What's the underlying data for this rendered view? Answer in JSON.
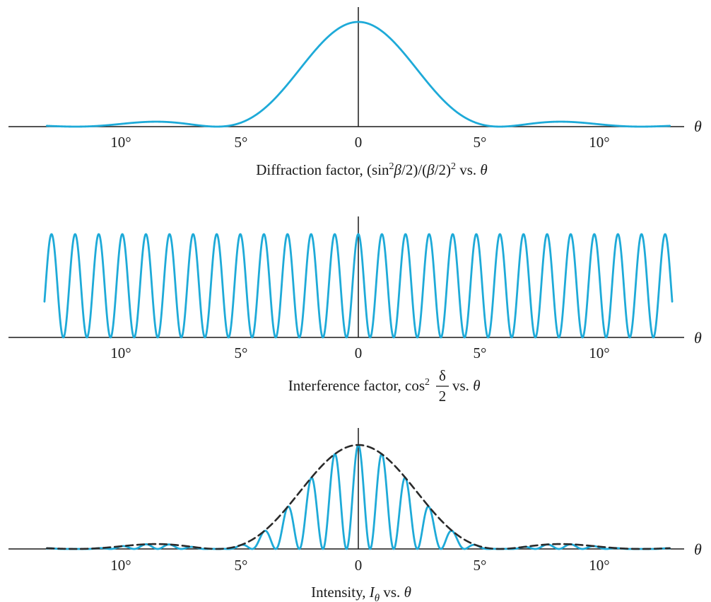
{
  "colors": {
    "curve": "#1eaad8",
    "envelope": "#2a2a2a",
    "axis": "#1a1a1a"
  },
  "chart_data": [
    {
      "type": "line",
      "title": "Diffraction factor, (sin²β/2)/(β/2)² vs. θ",
      "caption_parts": {
        "prefix": "Diffraction factor, (sin",
        "sup1": "2",
        "mid_var": "β",
        "mid": "/2)/(",
        "var2": "β",
        "after": "/2)",
        "sup2": "2",
        "suffix": " vs. ",
        "theta": "θ"
      },
      "xlabel": "θ",
      "xlim": [
        -13,
        13
      ],
      "ylim": [
        0,
        1
      ],
      "x_ticks": [
        -10,
        -5,
        0,
        5,
        10
      ],
      "x_tick_labels": [
        "10°",
        "5°",
        "0",
        "5°",
        "10°"
      ],
      "series": [
        {
          "function": "sinc_squared",
          "first_zero_deg": 5.9,
          "peak_value": 1.0,
          "x_range": [
            -13,
            13
          ],
          "style": "solid",
          "color": "#1eaad8"
        }
      ]
    },
    {
      "type": "line",
      "title": "Interference factor, cos² δ/2 vs. θ",
      "caption_parts": {
        "prefix": "Interference factor, cos",
        "sup": "2",
        "frac_num": "δ",
        "frac_den": "2",
        "suffix": " vs. ",
        "theta": "θ"
      },
      "xlabel": "θ",
      "xlim": [
        -13,
        13
      ],
      "ylim": [
        0,
        1
      ],
      "x_ticks": [
        -10,
        -5,
        0,
        5,
        10
      ],
      "x_tick_labels": [
        "10°",
        "5°",
        "0",
        "5°",
        "10°"
      ],
      "series": [
        {
          "function": "cos_squared",
          "fringe_spacing_deg": 0.985,
          "peak_value": 1.0,
          "x_range": [
            -13.1,
            13.1
          ],
          "style": "solid",
          "color": "#1eaad8"
        }
      ]
    },
    {
      "type": "line",
      "title": "Intensity, Iθ vs. θ",
      "caption_parts": {
        "prefix": "Intensity, ",
        "var": "I",
        "sub": "θ",
        "suffix": " vs. ",
        "theta": "θ"
      },
      "xlabel": "θ",
      "xlim": [
        -13,
        13
      ],
      "ylim": [
        0,
        1
      ],
      "x_ticks": [
        -10,
        -5,
        0,
        5,
        10
      ],
      "x_tick_labels": [
        "10°",
        "5°",
        "0",
        "5°",
        "10°"
      ],
      "series": [
        {
          "function": "sinc_squared_times_cos_squared",
          "first_zero_deg": 5.9,
          "fringe_spacing_deg": 0.985,
          "peak_value": 1.0,
          "x_range": [
            -13,
            13
          ],
          "style": "solid",
          "color": "#1eaad8"
        },
        {
          "function": "sinc_squared",
          "first_zero_deg": 5.9,
          "peak_value": 1.0,
          "x_range": [
            -13,
            13
          ],
          "style": "dashed",
          "color": "#2a2a2a"
        }
      ]
    }
  ]
}
